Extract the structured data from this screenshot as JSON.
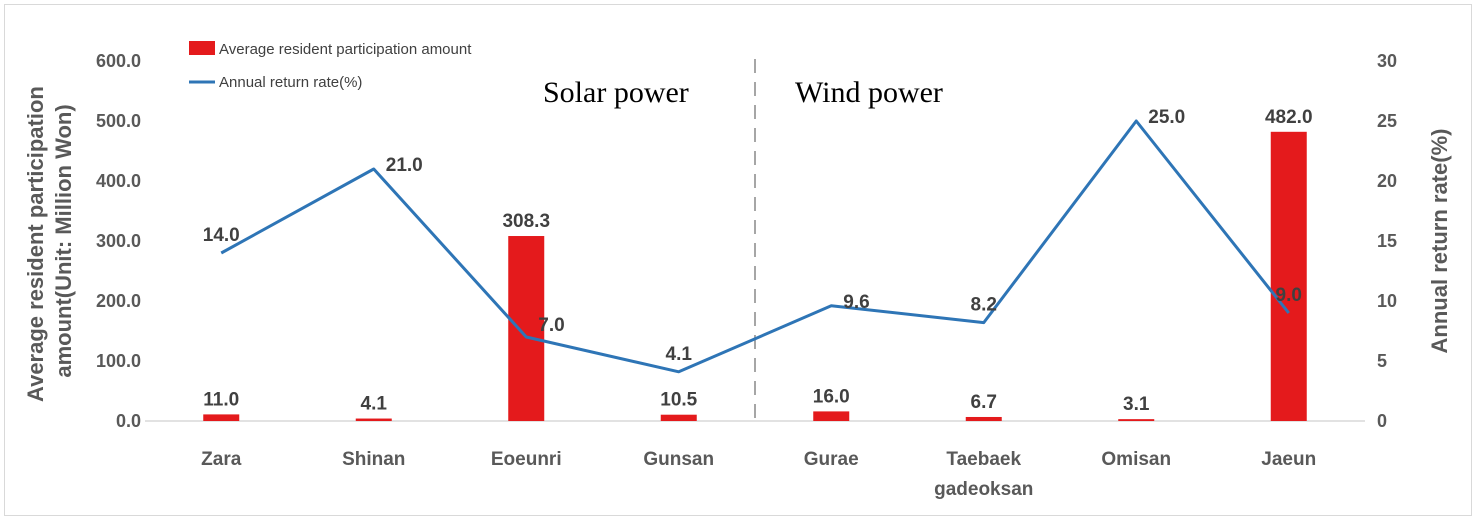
{
  "chart_data": {
    "type": "bar+line",
    "categories": [
      "Zara",
      "Shinan",
      "Eoeunri",
      "Gunsan",
      "Gurae",
      "Taebaek gadeoksan",
      "Omisan",
      "Jaeun"
    ],
    "category_lines": [
      [
        "Zara"
      ],
      [
        "Shinan"
      ],
      [
        "Eoeunri"
      ],
      [
        "Gunsan"
      ],
      [
        "Gurae"
      ],
      [
        "Taebaek",
        "gadeoksan"
      ],
      [
        "Omisan"
      ],
      [
        "Jaeun"
      ]
    ],
    "series": [
      {
        "name": "Average resident participation amount",
        "type": "bar",
        "axis": "left",
        "color": "#e41a1c",
        "values": [
          11.0,
          4.1,
          308.3,
          10.5,
          16.0,
          6.7,
          3.1,
          482.0
        ],
        "labels": [
          "11.0",
          "4.1",
          "308.3",
          "10.5",
          "16.0",
          "6.7",
          "3.1",
          "482.0"
        ]
      },
      {
        "name": "Annual return rate(%)",
        "type": "line",
        "axis": "right",
        "color": "#2e75b6",
        "values": [
          14.0,
          21.0,
          7.0,
          4.1,
          9.6,
          8.2,
          25.0,
          9.0
        ],
        "labels": [
          "14.0",
          "21.0",
          "7.0",
          "4.1",
          "9.6",
          "8.2",
          "25.0",
          "9.0"
        ]
      }
    ],
    "y_left": {
      "label_lines": [
        "Average resident participation",
        "amount(Unit: Million Won)"
      ],
      "range": [
        0,
        600
      ],
      "ticks": [
        "0.0",
        "100.0",
        "200.0",
        "300.0",
        "400.0",
        "500.0",
        "600.0"
      ]
    },
    "y_right": {
      "label": "Annual return rate(%)",
      "range": [
        0,
        30
      ],
      "ticks": [
        "0",
        "5",
        "10",
        "15",
        "20",
        "25",
        "30"
      ]
    },
    "annotations": {
      "left_section": "Solar power",
      "right_section": "Wind power"
    },
    "legend_position": "top-left",
    "grid": false
  }
}
